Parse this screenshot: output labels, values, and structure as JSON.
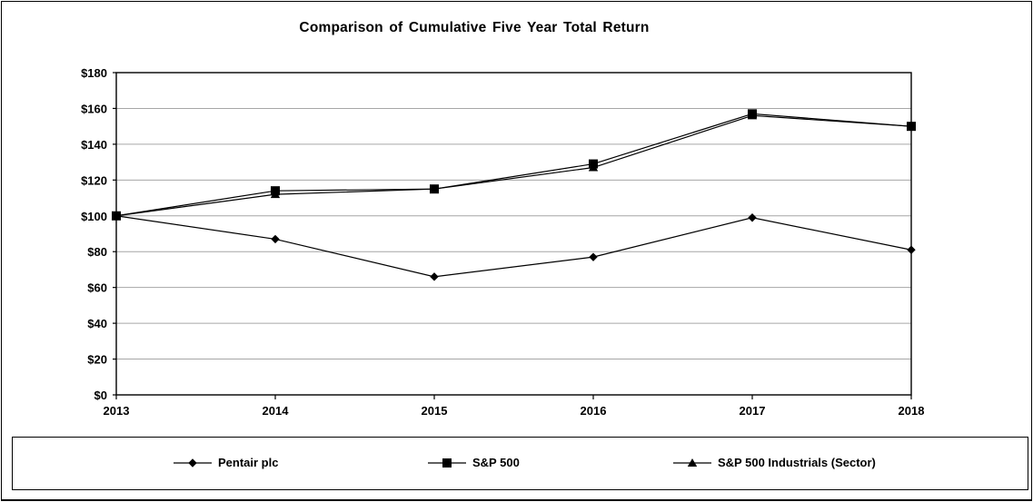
{
  "chart_data": {
    "type": "line",
    "title": "Comparison of Cumulative Five Year Total Return",
    "x": [
      "2013",
      "2014",
      "2015",
      "2016",
      "2017",
      "2018"
    ],
    "series": [
      {
        "name": "Pentair plc",
        "marker": "diamond",
        "color": "#000000",
        "values": [
          100,
          87,
          66,
          77,
          99,
          81
        ]
      },
      {
        "name": "S&P 500",
        "marker": "square",
        "color": "#000000",
        "values": [
          100,
          114,
          115,
          129,
          157,
          150
        ]
      },
      {
        "name": "S&P 500 Industrials (Sector)",
        "marker": "triangle",
        "color": "#000000",
        "values": [
          100,
          112,
          115,
          127,
          156,
          150
        ]
      }
    ],
    "ylim": [
      0,
      180
    ],
    "ytick_step": 20,
    "ytick_labels": [
      "$0",
      "$20",
      "$40",
      "$60",
      "$80",
      "$100",
      "$120",
      "$140",
      "$160",
      "$180"
    ],
    "xtick_labels": [
      "2013",
      "2014",
      "2015",
      "2016",
      "2017",
      "2018"
    ],
    "grid": "horizontal",
    "grid_color": "#a6a6a6",
    "axis_color": "#000000",
    "legend_position": "bottom-box"
  }
}
